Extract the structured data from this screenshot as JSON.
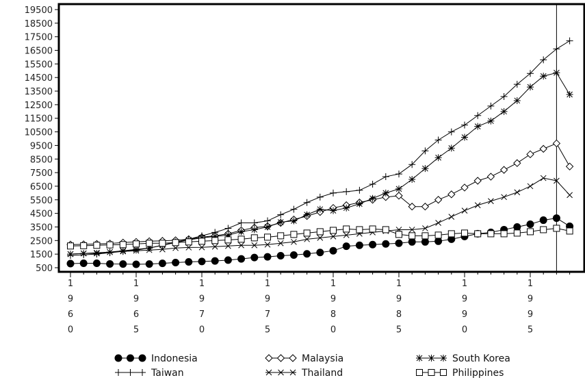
{
  "chart_data": {
    "type": "line",
    "title": "",
    "xlabel": "",
    "ylabel": "",
    "xlim": [
      1960,
      1998
    ],
    "ylim": [
      500,
      19500
    ],
    "y_ticks": [
      500,
      1500,
      2500,
      3500,
      4500,
      5500,
      6500,
      7500,
      8500,
      9500,
      10500,
      11500,
      12500,
      13500,
      14500,
      15500,
      16500,
      17500,
      18500,
      19500
    ],
    "y_tick_labels": [
      "500",
      "1500",
      "2500",
      "3500",
      "4500",
      "5500",
      "6500",
      "7500",
      "8500",
      "9500",
      "10500",
      "11500",
      "12500",
      "13500",
      "14500",
      "15500",
      "16500",
      "17500",
      "18500",
      "19500"
    ],
    "x_tick_values": [
      1960,
      1965,
      1970,
      1975,
      1980,
      1985,
      1990,
      1995
    ],
    "x_tick_labels": [
      "1960",
      "1965",
      "1970",
      "1975",
      "1980",
      "1985",
      "1990",
      "1995"
    ],
    "reference_line_x": 1997,
    "grid": false,
    "legend_position": "bottom",
    "x": [
      1960,
      1961,
      1962,
      1963,
      1964,
      1965,
      1966,
      1967,
      1968,
      1969,
      1970,
      1971,
      1972,
      1973,
      1974,
      1975,
      1976,
      1977,
      1978,
      1979,
      1980,
      1981,
      1982,
      1983,
      1984,
      1985,
      1986,
      1987,
      1988,
      1989,
      1990,
      1991,
      1992,
      1993,
      1994,
      1995,
      1996,
      1997,
      1998
    ],
    "series": [
      {
        "name": "Indonesia",
        "marker": "filled-circle",
        "color": "#000000",
        "values": [
          800,
          830,
          830,
          780,
          770,
          750,
          770,
          820,
          880,
          930,
          960,
          1000,
          1060,
          1150,
          1250,
          1300,
          1380,
          1430,
          1520,
          1620,
          1750,
          2080,
          2150,
          2200,
          2250,
          2300,
          2400,
          2400,
          2450,
          2600,
          2800,
          3000,
          3100,
          3300,
          3500,
          3700,
          4000,
          4150,
          3550
        ]
      },
      {
        "name": "Malaysia",
        "marker": "diamond",
        "color": "#000000",
        "values": [
          2200,
          2220,
          2250,
          2280,
          2350,
          2400,
          2450,
          2480,
          2520,
          2600,
          2750,
          2850,
          3000,
          3250,
          3450,
          3550,
          3800,
          4050,
          4300,
          4600,
          4900,
          5100,
          5300,
          5500,
          5700,
          5800,
          5000,
          5000,
          5500,
          5900,
          6400,
          6900,
          7200,
          7700,
          8200,
          8850,
          9250,
          9650,
          7950
        ]
      },
      {
        "name": "South Korea",
        "marker": "asterisk",
        "color": "#000000",
        "values": [
          1500,
          1550,
          1550,
          1650,
          1750,
          1850,
          1950,
          2150,
          2350,
          2550,
          2700,
          2800,
          2900,
          3150,
          3300,
          3500,
          3850,
          3950,
          4400,
          4800,
          4700,
          4900,
          5200,
          5600,
          6000,
          6300,
          7000,
          7800,
          8600,
          9300,
          10100,
          10900,
          11300,
          12000,
          12800,
          13800,
          14600,
          14850,
          13250
        ]
      },
      {
        "name": "Taiwan",
        "marker": "plus",
        "color": "#000000",
        "values": [
          1400,
          1450,
          1500,
          1600,
          1700,
          1800,
          1950,
          2150,
          2400,
          2600,
          2850,
          3100,
          3400,
          3800,
          3800,
          3950,
          4400,
          4800,
          5300,
          5700,
          6000,
          6100,
          6200,
          6650,
          7200,
          7400,
          8100,
          9100,
          9900,
          10500,
          11000,
          11700,
          12400,
          13100,
          14000,
          14800,
          15800,
          16600,
          17200
        ]
      },
      {
        "name": "Thailand",
        "marker": "cross",
        "color": "#000000",
        "values": [
          1500,
          1550,
          1600,
          1650,
          1700,
          1750,
          1800,
          1850,
          1950,
          1990,
          2000,
          2050,
          2100,
          2150,
          2150,
          2200,
          2300,
          2400,
          2600,
          2700,
          2800,
          2900,
          3000,
          3100,
          3200,
          3300,
          3300,
          3400,
          3800,
          4250,
          4700,
          5100,
          5400,
          5700,
          6050,
          6500,
          7100,
          6900,
          5850
        ]
      },
      {
        "name": "Philippines",
        "marker": "square",
        "color": "#000000",
        "values": [
          2100,
          2120,
          2150,
          2180,
          2200,
          2250,
          2300,
          2300,
          2350,
          2400,
          2450,
          2500,
          2550,
          2600,
          2700,
          2750,
          2850,
          2950,
          3050,
          3150,
          3250,
          3350,
          3300,
          3350,
          3300,
          2950,
          2850,
          2850,
          2900,
          3000,
          3050,
          3000,
          3000,
          3000,
          3050,
          3150,
          3300,
          3400,
          3200
        ]
      }
    ]
  }
}
